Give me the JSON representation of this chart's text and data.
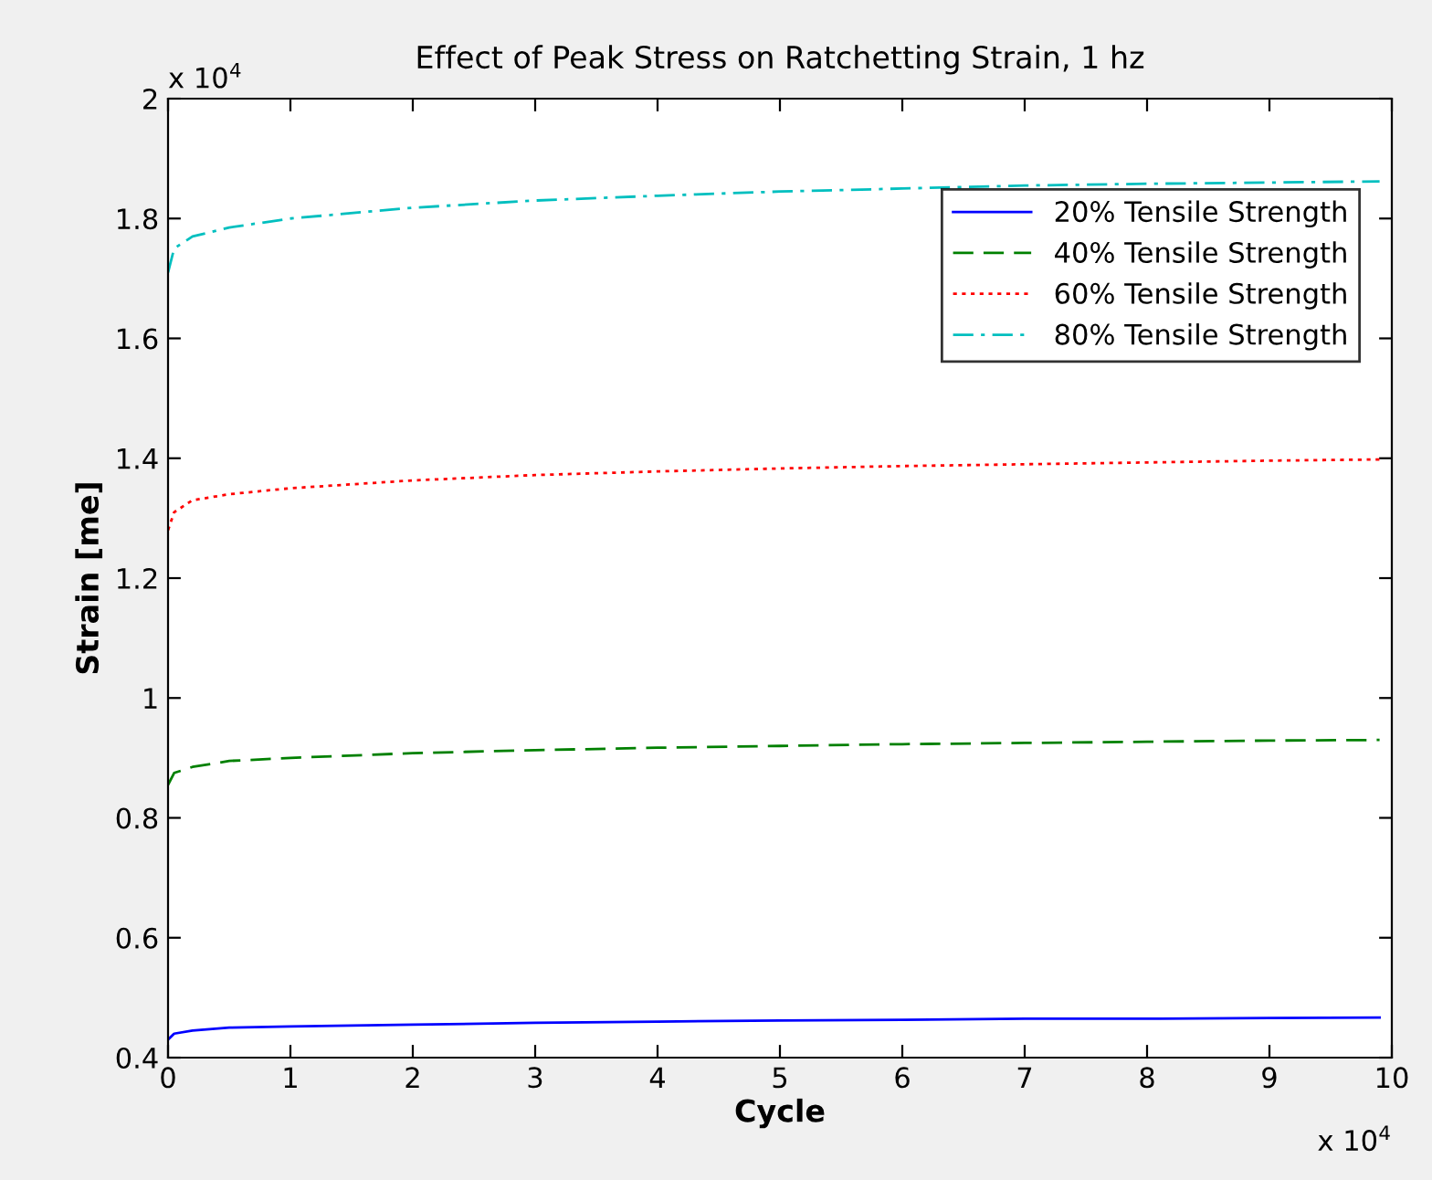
{
  "chart_data": {
    "type": "line",
    "title": "Effect of Peak Stress on Ratchetting Strain, 1 hz",
    "xlabel": "Cycle",
    "ylabel": "Strain [me]",
    "annotations": [
      "x 10$^{4}$",
      "x 10$^{4}$"
    ],
    "x": [
      0,
      0.05,
      0.2,
      0.5,
      1,
      2,
      3,
      4,
      5,
      6,
      7,
      8,
      9,
      9.9
    ],
    "series": [
      {
        "name": "20% Tensile Strength",
        "color": "#0000ff",
        "line_style": "solid",
        "values": [
          0.43,
          0.44,
          0.445,
          0.45,
          0.452,
          0.455,
          0.458,
          0.46,
          0.462,
          0.463,
          0.465,
          0.465,
          0.466,
          0.467
        ]
      },
      {
        "name": "40% Tensile Strength",
        "color": "#008000",
        "line_style": "dashed",
        "values": [
          0.855,
          0.875,
          0.885,
          0.895,
          0.9,
          0.908,
          0.913,
          0.917,
          0.92,
          0.923,
          0.925,
          0.927,
          0.929,
          0.93
        ]
      },
      {
        "name": "60% Tensile Strength",
        "color": "#ff0000",
        "line_style": "dotted",
        "values": [
          1.28,
          1.31,
          1.33,
          1.34,
          1.35,
          1.363,
          1.372,
          1.378,
          1.383,
          1.387,
          1.39,
          1.393,
          1.396,
          1.398
        ]
      },
      {
        "name": "80% Tensile Strength",
        "color": "#00bfbf",
        "line_style": "dashdot",
        "values": [
          1.71,
          1.75,
          1.77,
          1.785,
          1.8,
          1.818,
          1.83,
          1.838,
          1.845,
          1.85,
          1.855,
          1.858,
          1.86,
          1.862
        ]
      }
    ],
    "xlim": [
      0,
      10
    ],
    "xticks": [
      0,
      1,
      2,
      3,
      4,
      5,
      6,
      7,
      8,
      9,
      10
    ],
    "ylim": [
      0.4,
      2
    ],
    "yticks": [
      0.4,
      0.6,
      0.8,
      1,
      1.2,
      1.4,
      1.6,
      1.8,
      2
    ],
    "grid": false,
    "legend": "top right",
    "marker": "none"
  }
}
